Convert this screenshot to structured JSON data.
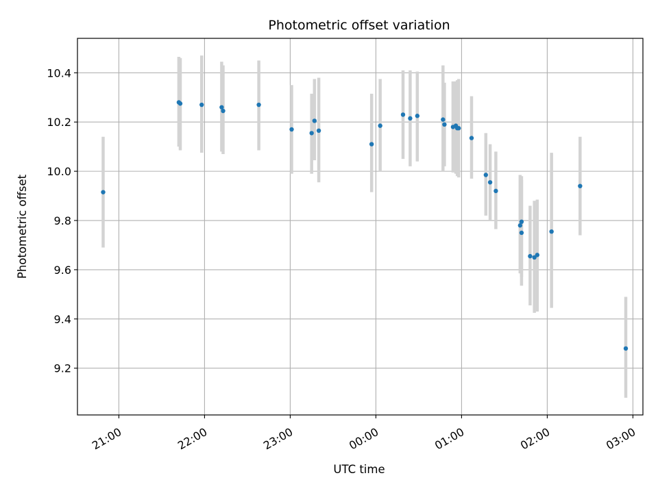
{
  "chart_data": {
    "type": "scatter",
    "title": "Photometric offset variation",
    "xlabel": "UTC time",
    "ylabel": "Photometric offset",
    "x_ticks": [
      "21:00",
      "22:00",
      "23:00",
      "00:00",
      "01:00",
      "02:00",
      "03:00"
    ],
    "y_ticks": [
      "9.2",
      "9.4",
      "9.6",
      "9.8",
      "10.0",
      "10.2",
      "10.4"
    ],
    "xlim": [
      "20:31",
      "03:07"
    ],
    "ylim": [
      9.01,
      10.54
    ],
    "grid": true,
    "colors": {
      "points": "#1f77b4",
      "errorbars": "#d3d3d3",
      "grid": "#b0b0b0"
    },
    "points": [
      {
        "t": "20:49",
        "y": 9.915,
        "lo": 9.69,
        "hi": 10.14
      },
      {
        "t": "21:42",
        "y": 10.28,
        "lo": 10.1,
        "hi": 10.465
      },
      {
        "t": "21:43",
        "y": 10.275,
        "lo": 10.085,
        "hi": 10.46
      },
      {
        "t": "21:58",
        "y": 10.27,
        "lo": 10.075,
        "hi": 10.47
      },
      {
        "t": "22:12",
        "y": 10.26,
        "lo": 10.08,
        "hi": 10.445
      },
      {
        "t": "22:13",
        "y": 10.245,
        "lo": 10.07,
        "hi": 10.43
      },
      {
        "t": "22:38",
        "y": 10.27,
        "lo": 10.085,
        "hi": 10.45
      },
      {
        "t": "23:01",
        "y": 10.17,
        "lo": 9.99,
        "hi": 10.35
      },
      {
        "t": "23:15",
        "y": 10.155,
        "lo": 9.99,
        "hi": 10.315
      },
      {
        "t": "23:17",
        "y": 10.205,
        "lo": 10.045,
        "hi": 10.375
      },
      {
        "t": "23:20",
        "y": 10.165,
        "lo": 9.955,
        "hi": 10.38
      },
      {
        "t": "23:57",
        "y": 10.11,
        "lo": 9.915,
        "hi": 10.315
      },
      {
        "t": "00:03",
        "y": 10.185,
        "lo": 10.0,
        "hi": 10.375
      },
      {
        "t": "00:19",
        "y": 10.23,
        "lo": 10.05,
        "hi": 10.41
      },
      {
        "t": "00:24",
        "y": 10.215,
        "lo": 10.02,
        "hi": 10.41
      },
      {
        "t": "00:29",
        "y": 10.225,
        "lo": 10.04,
        "hi": 10.405
      },
      {
        "t": "00:47",
        "y": 10.21,
        "lo": 10.0,
        "hi": 10.43
      },
      {
        "t": "00:48",
        "y": 10.19,
        "lo": 10.02,
        "hi": 10.36
      },
      {
        "t": "00:54",
        "y": 10.18,
        "lo": 9.995,
        "hi": 10.365
      },
      {
        "t": "00:56",
        "y": 10.185,
        "lo": 9.99,
        "hi": 10.365
      },
      {
        "t": "00:57",
        "y": 10.175,
        "lo": 9.98,
        "hi": 10.37
      },
      {
        "t": "00:58",
        "y": 10.175,
        "lo": 9.975,
        "hi": 10.375
      },
      {
        "t": "01:07",
        "y": 10.135,
        "lo": 9.97,
        "hi": 10.305
      },
      {
        "t": "01:17",
        "y": 9.985,
        "lo": 9.82,
        "hi": 10.155
      },
      {
        "t": "01:20",
        "y": 9.955,
        "lo": 9.8,
        "hi": 10.11
      },
      {
        "t": "01:24",
        "y": 9.92,
        "lo": 9.765,
        "hi": 10.08
      },
      {
        "t": "01:41",
        "y": 9.78,
        "lo": 9.585,
        "hi": 9.985
      },
      {
        "t": "01:42",
        "y": 9.795,
        "lo": 9.57,
        "hi": 9.98
      },
      {
        "t": "01:42",
        "y": 9.75,
        "lo": 9.535,
        "hi": 9.965
      },
      {
        "t": "01:48",
        "y": 9.655,
        "lo": 9.455,
        "hi": 9.86
      },
      {
        "t": "01:51",
        "y": 9.65,
        "lo": 9.425,
        "hi": 9.88
      },
      {
        "t": "01:53",
        "y": 9.66,
        "lo": 9.43,
        "hi": 9.885
      },
      {
        "t": "02:03",
        "y": 9.755,
        "lo": 9.445,
        "hi": 10.075
      },
      {
        "t": "02:23",
        "y": 9.94,
        "lo": 9.74,
        "hi": 10.14
      },
      {
        "t": "02:55",
        "y": 9.28,
        "lo": 9.08,
        "hi": 9.49
      }
    ]
  }
}
